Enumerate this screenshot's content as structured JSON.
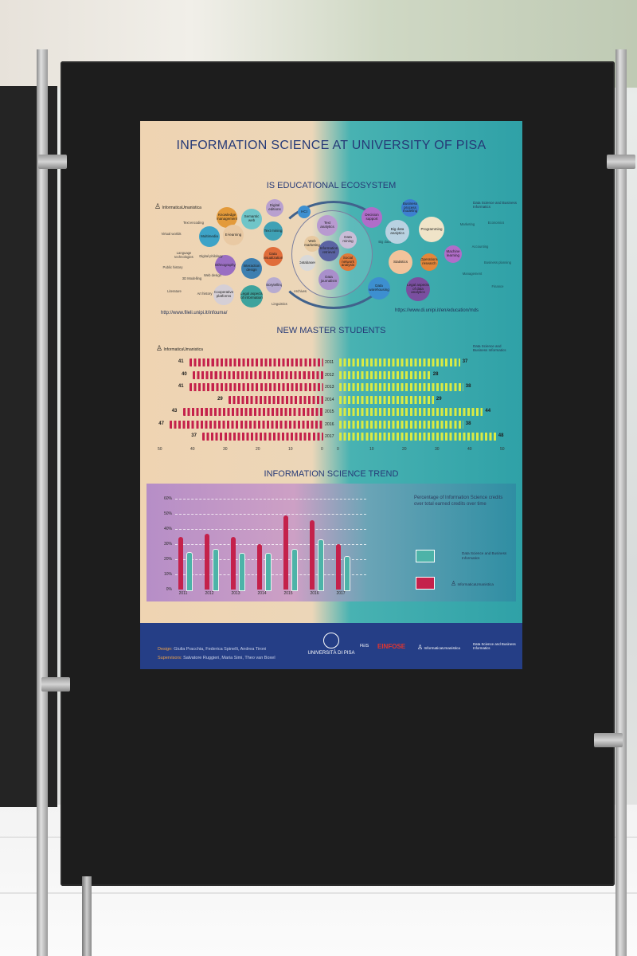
{
  "poster": {
    "title": "INFORMATION SCIENCE AT UNIVERSITY OF PISA",
    "section1_title": "IS EDUCATIONAL ECOSYSTEM",
    "section2_title": "NEW MASTER STUDENTS",
    "section3_title": "INFORMATION SCIENCE TREND",
    "logo_left": "InformaticaUmanistica",
    "logo_right": "Data Science and Business Informatics",
    "url_left": "http://www.fileli.unipi.it/infouma/",
    "url_right": "https://www.di.unipi.it/en/education/mds",
    "bubbles_left": [
      "Knowledge management",
      "Semantic web",
      "Digital editions",
      "Multimedia",
      "E-learning",
      "Text mining",
      "Ethnography",
      "Interaction design",
      "Data visualization",
      "Cooperative platforms",
      "Legal aspects of information",
      "Storytelling"
    ],
    "plain_left": [
      "Text encoding",
      "Virtual worlds",
      "Language technologies",
      "Digital philology",
      "Public history",
      "3D Modelling",
      "Web design",
      "Literature",
      "Art history",
      "Linguistics",
      "Archives"
    ],
    "bubbles_center": [
      "Text analytics",
      "HCI",
      "Data mining",
      "Web marketing",
      "Information retrieval",
      "Databases",
      "Social network analysis",
      "Data journalism"
    ],
    "bubbles_right": [
      "Decision support",
      "Business process modeling",
      "Big data analytics",
      "Programming",
      "Machine learning",
      "Statistics",
      "Operations research",
      "Data warehousing",
      "Legal aspects of data analytics"
    ],
    "plain_right": [
      "Marketing",
      "Economics",
      "Accounting",
      "Business planning",
      "Management",
      "Finance",
      "Big data"
    ],
    "years": [
      "2011",
      "2012",
      "2013",
      "2014",
      "2015",
      "2016",
      "2017"
    ],
    "axis_left": [
      "50",
      "40",
      "30",
      "20",
      "10",
      "0"
    ],
    "axis_right": [
      "0",
      "10",
      "20",
      "30",
      "40",
      "50"
    ],
    "trend_ticks": [
      "60%",
      "50%",
      "40%",
      "30%",
      "20%",
      "10%",
      "0%"
    ],
    "trend_desc": "Percentage of Information Science credits over total earned credits over time",
    "legend_teal": "Data Science and Business Informatics",
    "legend_red": "InformaticaUmanistica",
    "credit_design_label": "Design:",
    "credit_design": "Giulia Pracchia, Federica Spinelli, Andrea Tironi",
    "credit_supervisors_label": "Supervisors:",
    "credit_supervisors": "Salvatore Ruggieri, Maria Simi, Theo van Boxel",
    "footer_univ": "UNIVERSITÀ DI PISA",
    "footer_einfose": "EINFOSE",
    "footer_feis": "FEIS",
    "footer_infouma": "InformaticaUmanistica",
    "footer_dsbi": "Data Science and Business Informatics"
  },
  "chart_data": [
    {
      "type": "bar",
      "title": "NEW MASTER STUDENTS",
      "categories": [
        "2011",
        "2012",
        "2013",
        "2014",
        "2015",
        "2016",
        "2017"
      ],
      "series": [
        {
          "name": "InformaticaUmanistica",
          "values": [
            41,
            40,
            41,
            29,
            43,
            47,
            37
          ]
        },
        {
          "name": "Data Science and Business Informatics",
          "values": [
            37,
            28,
            38,
            29,
            44,
            38,
            48
          ]
        }
      ],
      "xlim": [
        0,
        50
      ]
    },
    {
      "type": "bar",
      "title": "INFORMATION SCIENCE TREND",
      "categories": [
        "2011",
        "2012",
        "2013",
        "2014",
        "2015",
        "2016",
        "2017"
      ],
      "series": [
        {
          "name": "InformaticaUmanistica",
          "values": [
            35,
            37,
            35,
            30,
            49,
            46,
            30
          ]
        },
        {
          "name": "Data Science and Business Informatics",
          "values": [
            25,
            27,
            24,
            24,
            27,
            33,
            22
          ]
        }
      ],
      "ylim": [
        0,
        60
      ],
      "ylabel": "Percentage of Information Science credits over total earned credits over time"
    }
  ],
  "colors": {
    "humanities": "#c4214b",
    "datascience": "#4db3a8",
    "students_right": "#d9eb44",
    "title": "#263a77"
  }
}
